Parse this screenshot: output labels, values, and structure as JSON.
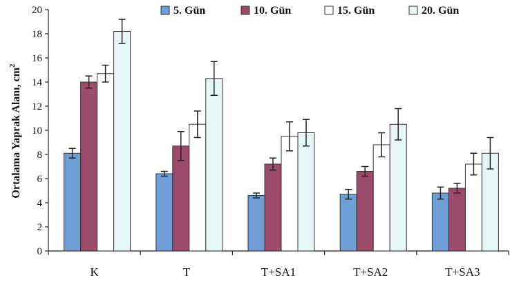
{
  "chart_data": {
    "type": "bar",
    "categories": [
      "K",
      "T",
      "T+SA1",
      "T+SA2",
      "T+SA3"
    ],
    "series": [
      {
        "name": "5. Gün",
        "color": "#6f9fd6",
        "values": [
          8.1,
          6.4,
          4.6,
          4.7,
          4.8
        ],
        "errors": [
          0.4,
          0.2,
          0.2,
          0.4,
          0.5
        ]
      },
      {
        "name": "10. Gün",
        "color": "#9c4b6b",
        "values": [
          14.0,
          8.7,
          7.2,
          6.6,
          5.2
        ],
        "errors": [
          0.5,
          1.2,
          0.5,
          0.4,
          0.4
        ]
      },
      {
        "name": "15. Gün",
        "color": "#ffffff",
        "values": [
          14.7,
          10.5,
          9.5,
          8.8,
          7.2
        ],
        "errors": [
          0.7,
          1.1,
          1.2,
          1.0,
          0.9
        ]
      },
      {
        "name": "20. Gün",
        "color": "#e6f6f6",
        "values": [
          18.2,
          14.3,
          9.8,
          10.5,
          8.1
        ],
        "errors": [
          1.0,
          1.4,
          1.1,
          1.3,
          1.3
        ]
      }
    ],
    "title": "",
    "xlabel": "",
    "ylabel": "Ortalama Yaprak Alanı, cm",
    "ylabel_superscript": "2",
    "ylim": [
      0,
      20
    ],
    "yticks": [
      0,
      2,
      4,
      6,
      8,
      10,
      12,
      14,
      16,
      18,
      20
    ],
    "grid": false,
    "legend_position": "top-right"
  }
}
